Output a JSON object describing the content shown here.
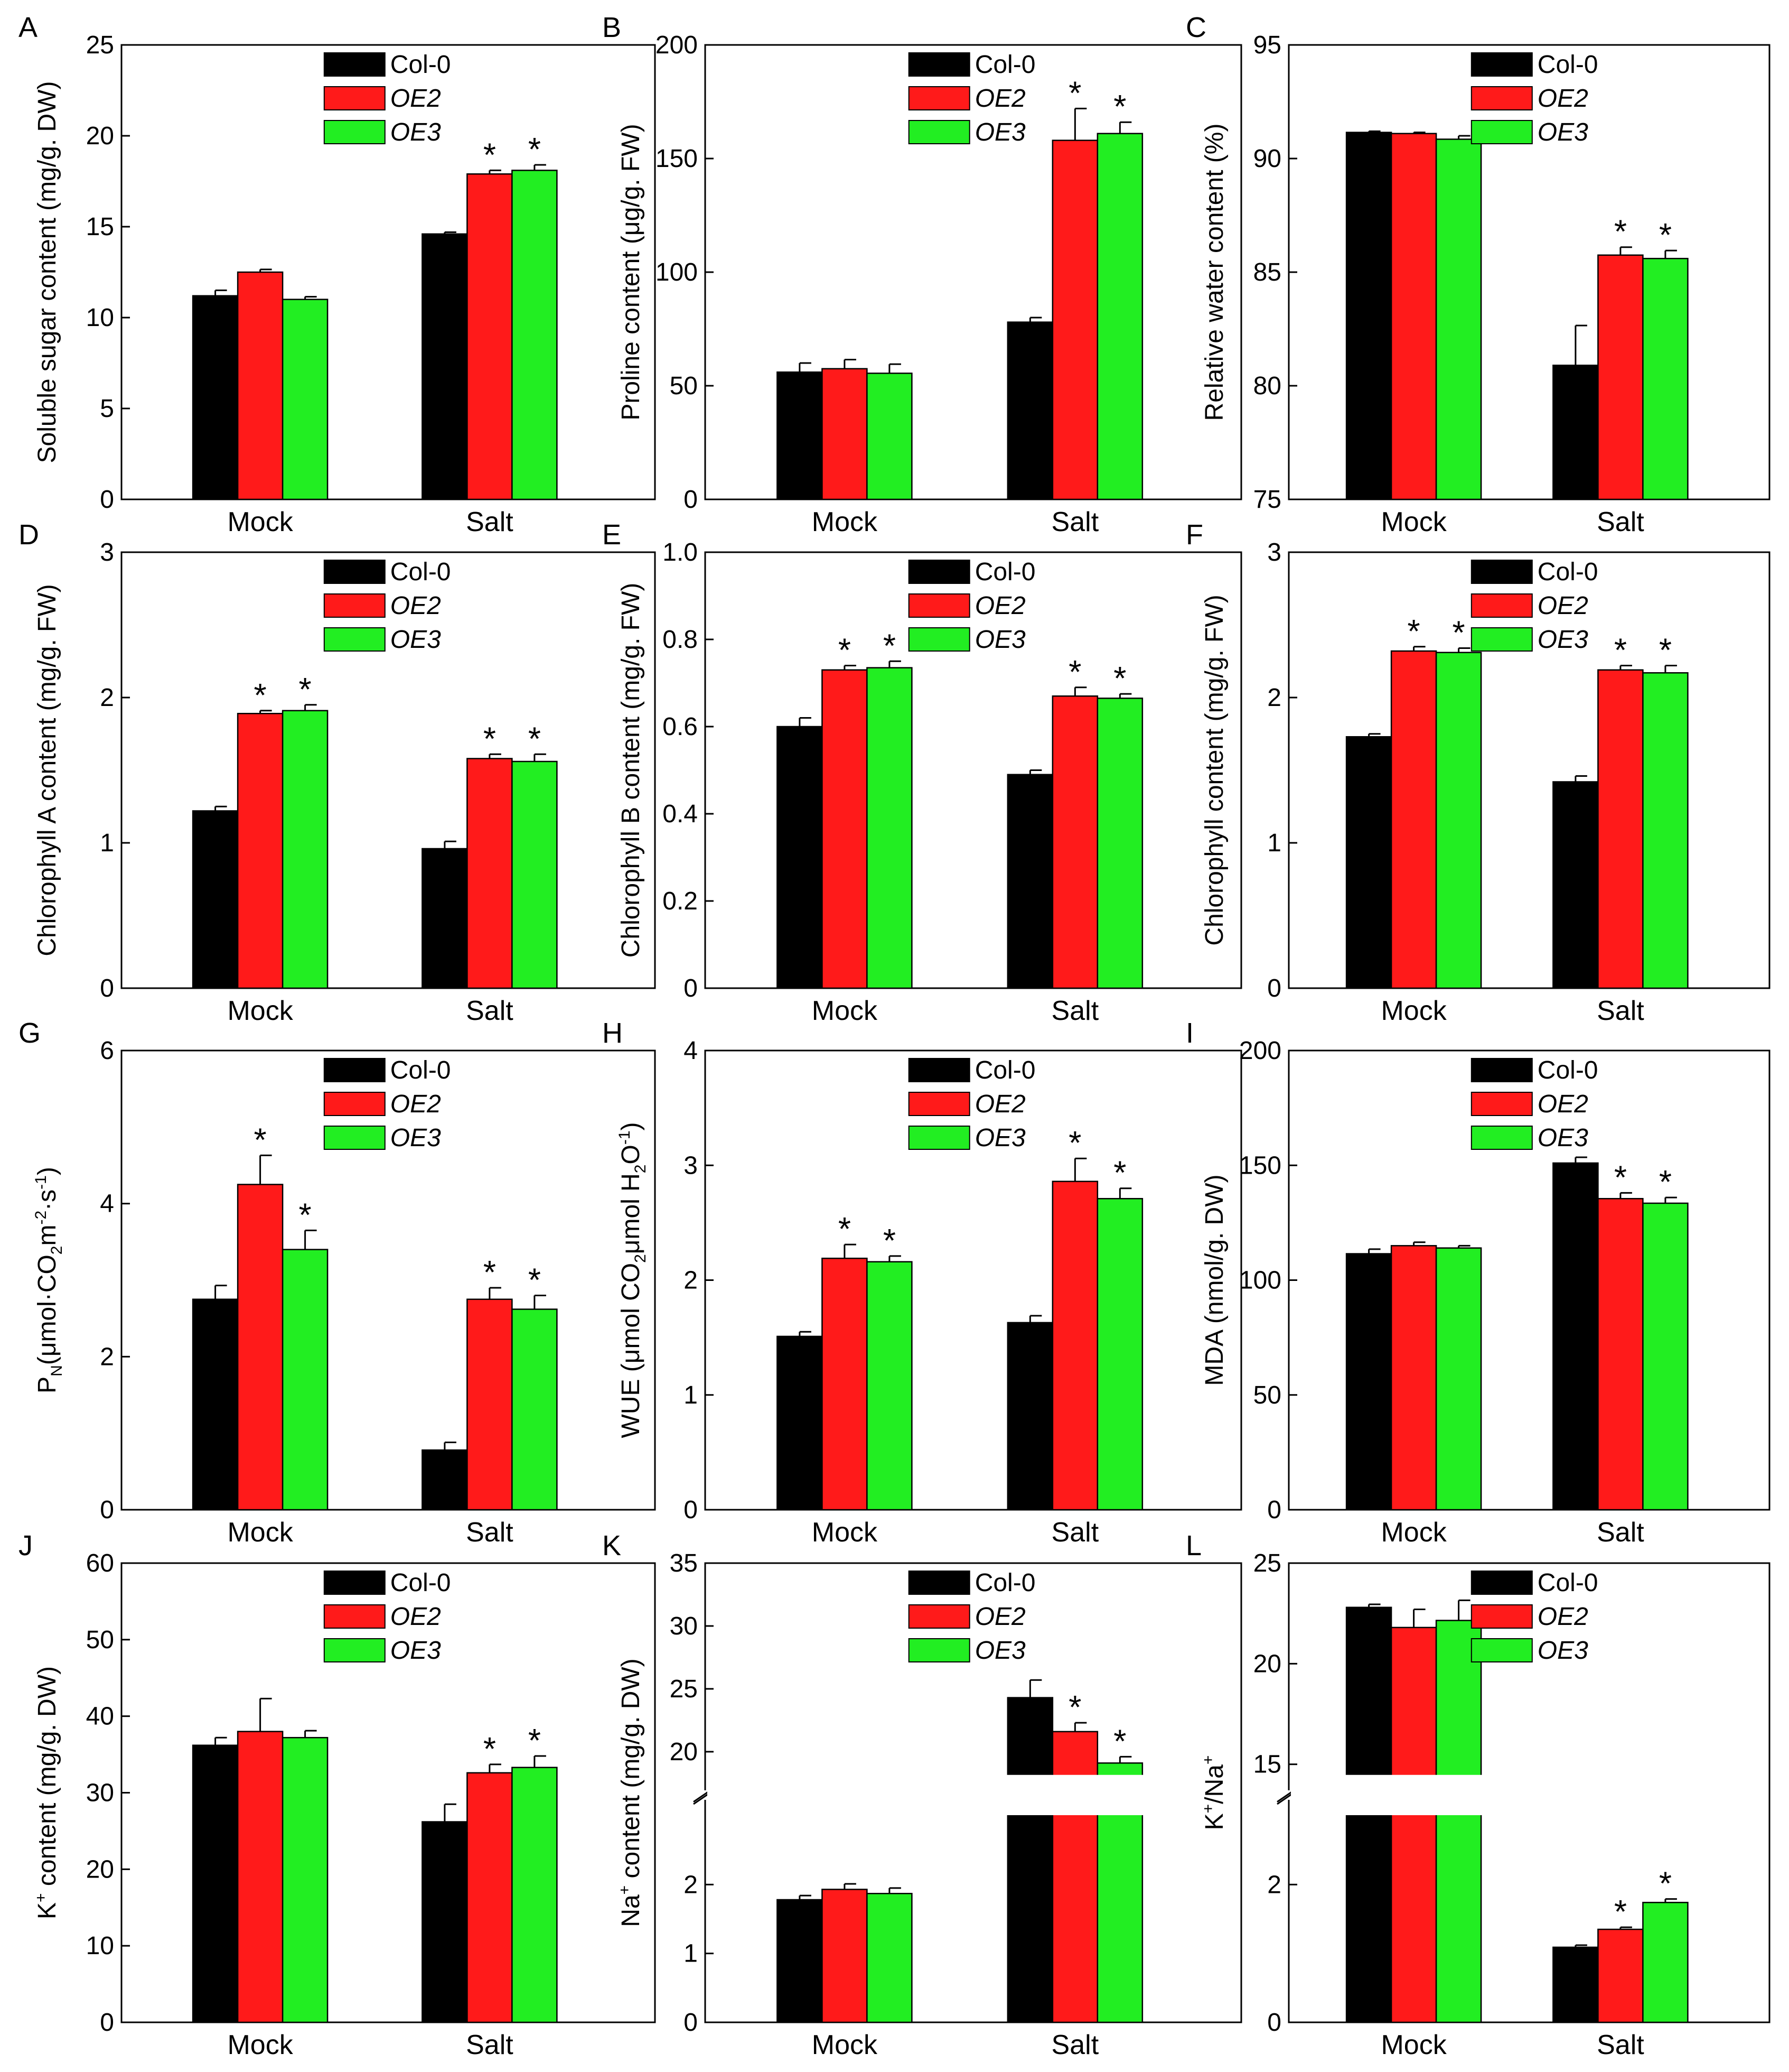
{
  "colors": {
    "col0": "#000000",
    "oe2": "#ff1a1a",
    "oe3": "#22ee22"
  },
  "figure": {
    "legend": [
      {
        "label": "Col-0",
        "italic": false
      },
      {
        "label": "OE2",
        "italic": true
      },
      {
        "label": "OE3",
        "italic": true
      }
    ],
    "star": "*"
  },
  "chart_data": [
    {
      "panel": "A",
      "type": "bar",
      "ylabel": "Soluble sugar content (mg/g. DW)",
      "ylim": [
        0,
        25
      ],
      "ticks": [
        "0",
        "5",
        "10",
        "15",
        "20",
        "25"
      ],
      "categories": [
        "Mock",
        "Salt"
      ],
      "series": [
        {
          "name": "Col-0",
          "values": [
            11.2,
            14.6
          ],
          "errors": [
            0.3,
            0.1
          ],
          "sig": [
            false,
            false
          ]
        },
        {
          "name": "OE2",
          "values": [
            12.5,
            17.9
          ],
          "errors": [
            0.15,
            0.2
          ],
          "sig": [
            false,
            true
          ]
        },
        {
          "name": "OE3",
          "values": [
            11.0,
            18.1
          ],
          "errors": [
            0.15,
            0.3
          ],
          "sig": [
            false,
            true
          ]
        }
      ]
    },
    {
      "panel": "B",
      "type": "bar",
      "ylabel": "Proline content (μg/g. FW)",
      "ylim": [
        0,
        200
      ],
      "ticks": [
        "0",
        "50",
        "100",
        "150",
        "200"
      ],
      "categories": [
        "Mock",
        "Salt"
      ],
      "series": [
        {
          "name": "Col-0",
          "values": [
            56,
            78
          ],
          "errors": [
            4,
            2
          ],
          "sig": [
            false,
            false
          ]
        },
        {
          "name": "OE2",
          "values": [
            57.5,
            158
          ],
          "errors": [
            4,
            14
          ],
          "sig": [
            false,
            true
          ]
        },
        {
          "name": "OE3",
          "values": [
            55.5,
            161
          ],
          "errors": [
            4,
            5
          ],
          "sig": [
            false,
            true
          ]
        }
      ]
    },
    {
      "panel": "C",
      "type": "bar",
      "ylabel": "Relative water content (%)",
      "ylim": [
        75,
        95
      ],
      "ticks": [
        "75",
        "80",
        "85",
        "90",
        "95"
      ],
      "categories": [
        "Mock",
        "Salt"
      ],
      "series": [
        {
          "name": "Col-0",
          "values": [
            91.15,
            80.9
          ],
          "errors": [
            0.05,
            1.75
          ],
          "sig": [
            false,
            false
          ]
        },
        {
          "name": "OE2",
          "values": [
            91.1,
            85.75
          ],
          "errors": [
            0.05,
            0.35
          ],
          "sig": [
            false,
            true
          ]
        },
        {
          "name": "OE3",
          "values": [
            90.85,
            85.6
          ],
          "errors": [
            0.15,
            0.35
          ],
          "sig": [
            false,
            true
          ]
        }
      ]
    },
    {
      "panel": "D",
      "type": "bar",
      "ylabel": "Chlorophyll A content (mg/g. FW)",
      "ylim": [
        0,
        3
      ],
      "ticks": [
        "0",
        "1",
        "2",
        "3"
      ],
      "categories": [
        "Mock",
        "Salt"
      ],
      "series": [
        {
          "name": "Col-0",
          "values": [
            1.22,
            0.96
          ],
          "errors": [
            0.03,
            0.05
          ],
          "sig": [
            false,
            false
          ]
        },
        {
          "name": "OE2",
          "values": [
            1.89,
            1.58
          ],
          "errors": [
            0.02,
            0.03
          ],
          "sig": [
            true,
            true
          ]
        },
        {
          "name": "OE3",
          "values": [
            1.91,
            1.56
          ],
          "errors": [
            0.04,
            0.05
          ],
          "sig": [
            true,
            true
          ]
        }
      ]
    },
    {
      "panel": "E",
      "type": "bar",
      "ylabel": "Chlorophyll B content (mg/g. FW)",
      "ylim": [
        0,
        1.0
      ],
      "ticks": [
        "0",
        "0.2",
        "0.4",
        "0.6",
        "0.8",
        "1.0"
      ],
      "categories": [
        "Mock",
        "Salt"
      ],
      "series": [
        {
          "name": "Col-0",
          "values": [
            0.6,
            0.49
          ],
          "errors": [
            0.02,
            0.01
          ],
          "sig": [
            false,
            false
          ]
        },
        {
          "name": "OE2",
          "values": [
            0.73,
            0.67
          ],
          "errors": [
            0.01,
            0.02
          ],
          "sig": [
            true,
            true
          ]
        },
        {
          "name": "OE3",
          "values": [
            0.735,
            0.665
          ],
          "errors": [
            0.015,
            0.01
          ],
          "sig": [
            true,
            true
          ]
        }
      ]
    },
    {
      "panel": "F",
      "type": "bar",
      "ylabel": "Chlorophyll content (mg/g. FW)",
      "ylim": [
        0,
        3
      ],
      "ticks": [
        "0",
        "1",
        "2",
        "3"
      ],
      "categories": [
        "Mock",
        "Salt"
      ],
      "series": [
        {
          "name": "Col-0",
          "values": [
            1.73,
            1.42
          ],
          "errors": [
            0.02,
            0.04
          ],
          "sig": [
            false,
            false
          ]
        },
        {
          "name": "OE2",
          "values": [
            2.32,
            2.19
          ],
          "errors": [
            0.03,
            0.03
          ],
          "sig": [
            true,
            true
          ]
        },
        {
          "name": "OE3",
          "values": [
            2.31,
            2.17
          ],
          "errors": [
            0.03,
            0.05
          ],
          "sig": [
            true,
            true
          ]
        }
      ]
    },
    {
      "panel": "G",
      "type": "bar",
      "ylabel_parts": [
        "P",
        "N",
        "(μmol·CO",
        "2",
        "m",
        "-2",
        "·s",
        "-1",
        ")"
      ],
      "ylim": [
        0,
        6
      ],
      "ticks": [
        "0",
        "2",
        "4",
        "6"
      ],
      "categories": [
        "Mock",
        "Salt"
      ],
      "series": [
        {
          "name": "Col-0",
          "values": [
            2.75,
            0.78
          ],
          "errors": [
            0.18,
            0.1
          ],
          "sig": [
            false,
            false
          ]
        },
        {
          "name": "OE2",
          "values": [
            4.25,
            2.75
          ],
          "errors": [
            0.38,
            0.15
          ],
          "sig": [
            true,
            true
          ]
        },
        {
          "name": "OE3",
          "values": [
            3.4,
            2.62
          ],
          "errors": [
            0.25,
            0.18
          ],
          "sig": [
            true,
            true
          ]
        }
      ]
    },
    {
      "panel": "H",
      "type": "bar",
      "ylabel_parts": [
        "WUE (μmol CO",
        "2",
        "μmol H",
        "2",
        "O",
        "-1",
        ")"
      ],
      "ylim": [
        0,
        4
      ],
      "ticks": [
        "0",
        "1",
        "2",
        "3",
        "4"
      ],
      "categories": [
        "Mock",
        "Salt"
      ],
      "series": [
        {
          "name": "Col-0",
          "values": [
            1.51,
            1.63
          ],
          "errors": [
            0.04,
            0.06
          ],
          "sig": [
            false,
            false
          ]
        },
        {
          "name": "OE2",
          "values": [
            2.19,
            2.86
          ],
          "errors": [
            0.12,
            0.2
          ],
          "sig": [
            true,
            true
          ]
        },
        {
          "name": "OE3",
          "values": [
            2.16,
            2.71
          ],
          "errors": [
            0.05,
            0.09
          ],
          "sig": [
            true,
            true
          ]
        }
      ]
    },
    {
      "panel": "I",
      "type": "bar",
      "ylabel": "MDA (nmol/g. DW)",
      "ylim": [
        0,
        200
      ],
      "ticks": [
        "0",
        "50",
        "100",
        "150",
        "200"
      ],
      "categories": [
        "Mock",
        "Salt"
      ],
      "series": [
        {
          "name": "Col-0",
          "values": [
            111.5,
            151
          ],
          "errors": [
            2,
            2.5
          ],
          "sig": [
            false,
            false
          ]
        },
        {
          "name": "OE2",
          "values": [
            115,
            135.5
          ],
          "errors": [
            1.5,
            2.5
          ],
          "sig": [
            false,
            true
          ]
        },
        {
          "name": "OE3",
          "values": [
            114,
            133.5
          ],
          "errors": [
            1,
            2.5
          ],
          "sig": [
            false,
            true
          ]
        }
      ]
    },
    {
      "panel": "J",
      "type": "bar",
      "ylabel_parts": [
        "K",
        "+",
        " content (mg/g. DW)"
      ],
      "ylim": [
        0,
        60
      ],
      "ticks": [
        "0",
        "10",
        "20",
        "30",
        "40",
        "50",
        "60"
      ],
      "categories": [
        "Mock",
        "Salt"
      ],
      "series": [
        {
          "name": "Col-0",
          "values": [
            36.2,
            26.2
          ],
          "errors": [
            1,
            2.3
          ],
          "sig": [
            false,
            false
          ]
        },
        {
          "name": "OE2",
          "values": [
            38,
            32.6
          ],
          "errors": [
            4.3,
            1.1
          ],
          "sig": [
            false,
            true
          ]
        },
        {
          "name": "OE3",
          "values": [
            37.2,
            33.3
          ],
          "errors": [
            0.9,
            1.5
          ],
          "sig": [
            false,
            true
          ]
        }
      ]
    },
    {
      "panel": "K",
      "type": "bar",
      "broken_axis": true,
      "ylabel_parts": [
        "Na",
        "+",
        " content (mg/g. DW)"
      ],
      "lower": {
        "ylim": [
          0,
          3.0
        ],
        "ticks": [
          "0",
          "1",
          "2"
        ]
      },
      "upper": {
        "ylim": [
          18.2,
          35
        ],
        "ticks": [
          "20",
          "25",
          "30",
          "35"
        ]
      },
      "categories": [
        "Mock",
        "Salt"
      ],
      "series": [
        {
          "name": "Col-0",
          "values": [
            1.78,
            24.3
          ],
          "errors": [
            0.06,
            1.4
          ],
          "sig": [
            false,
            false
          ]
        },
        {
          "name": "OE2",
          "values": [
            1.93,
            21.6
          ],
          "errors": [
            0.08,
            0.7
          ],
          "sig": [
            false,
            true
          ]
        },
        {
          "name": "OE3",
          "values": [
            1.87,
            19.1
          ],
          "errors": [
            0.08,
            0.5
          ],
          "sig": [
            false,
            true
          ]
        }
      ]
    },
    {
      "panel": "L",
      "type": "bar",
      "broken_axis": true,
      "ylabel_parts": [
        "K",
        "+",
        "/Na",
        "+"
      ],
      "lower": {
        "ylim": [
          0,
          3.0
        ],
        "ticks": [
          "0",
          "2"
        ]
      },
      "upper": {
        "ylim": [
          14.5,
          25
        ],
        "ticks": [
          "15",
          "20",
          "25"
        ]
      },
      "categories": [
        "Mock",
        "Salt"
      ],
      "series": [
        {
          "name": "Col-0",
          "values": [
            22.8,
            1.09
          ],
          "errors": [
            0.15,
            0.03
          ],
          "sig": [
            false,
            false
          ]
        },
        {
          "name": "OE2",
          "values": [
            21.8,
            1.35
          ],
          "errors": [
            0.9,
            0.03
          ],
          "sig": [
            false,
            true
          ]
        },
        {
          "name": "OE3",
          "values": [
            22.15,
            1.74
          ],
          "errors": [
            1.0,
            0.05
          ],
          "sig": [
            false,
            true
          ]
        }
      ]
    }
  ]
}
